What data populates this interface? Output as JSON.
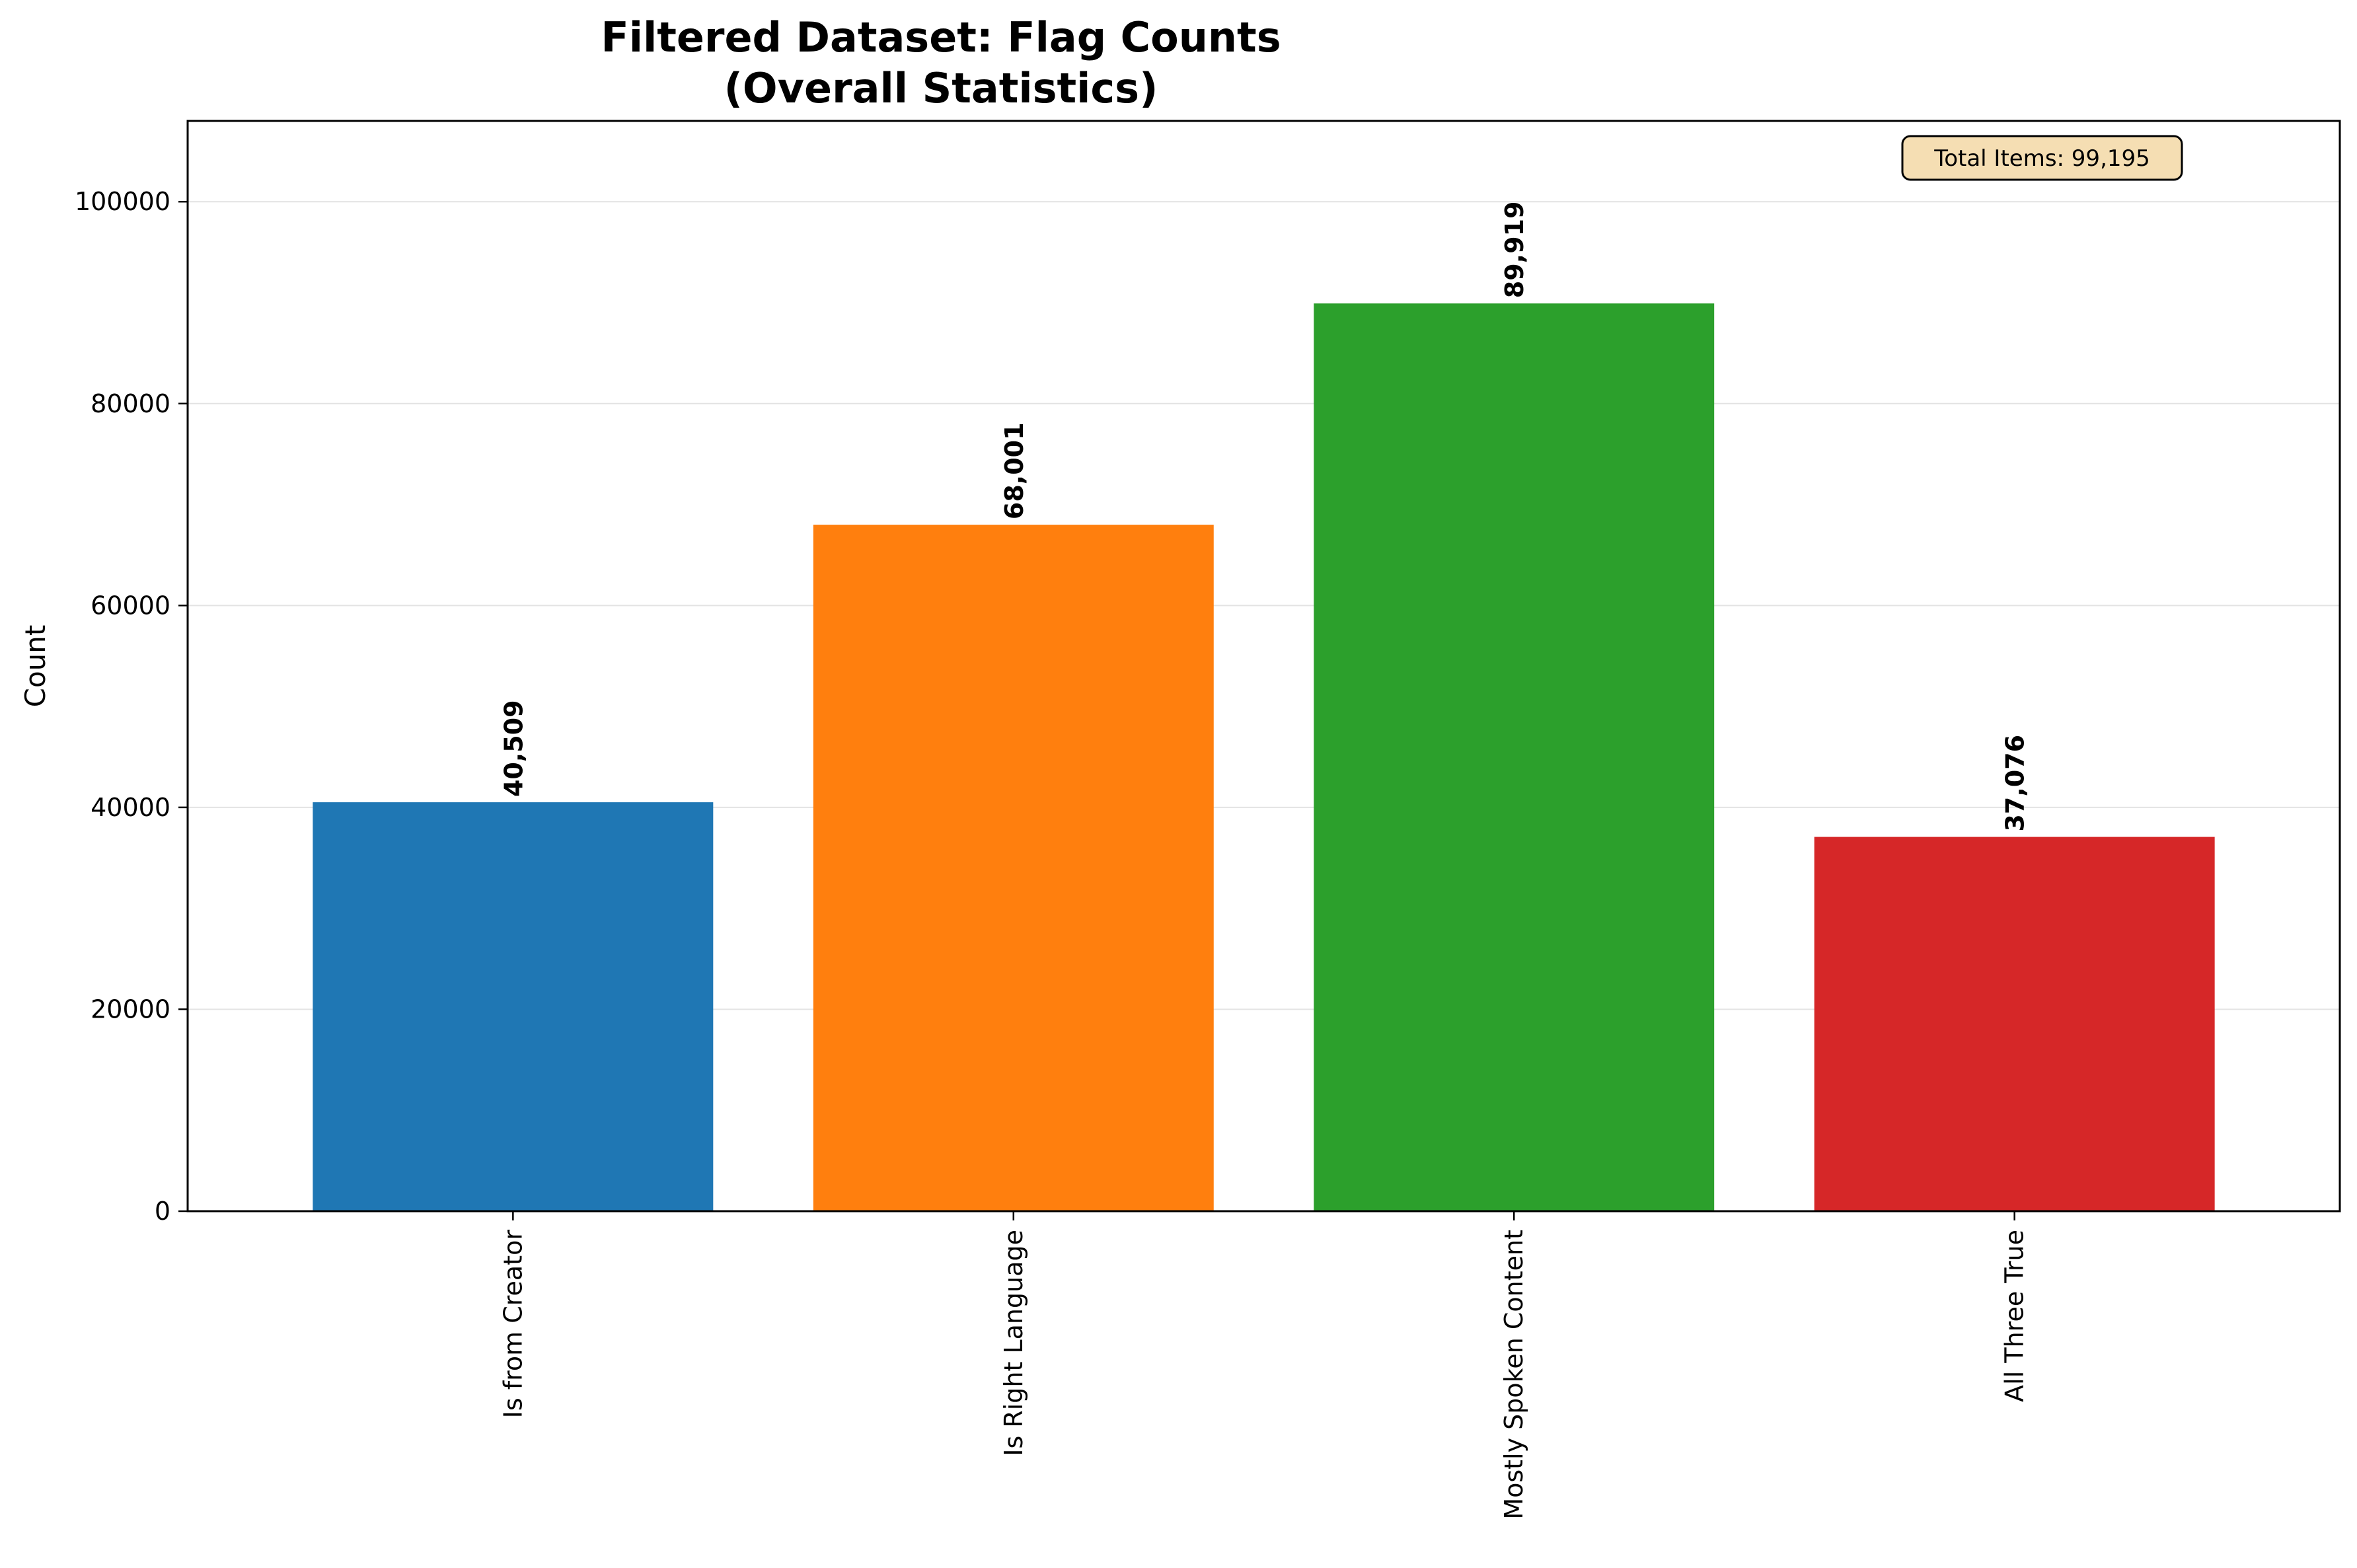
{
  "chart_data": {
    "type": "bar",
    "title": [
      "Filtered Dataset: Flag Counts",
      "(Overall Statistics)"
    ],
    "xlabel": "",
    "ylabel": "Count",
    "categories": [
      "Is from Creator",
      "Is Right Language",
      "Mostly Spoken Content",
      "All Three True"
    ],
    "values": [
      40509,
      68001,
      89919,
      37076
    ],
    "value_labels": [
      "40,509",
      "68,001",
      "89,919",
      "37,076"
    ],
    "colors": [
      "#1f77b4",
      "#ff7f0e",
      "#2ca02c",
      "#d62728"
    ],
    "ylim": [
      0,
      108000
    ],
    "yticks": [
      0,
      20000,
      40000,
      60000,
      80000,
      100000
    ],
    "grid": "y",
    "legend": "none",
    "annotation": "Total Items: 99,195",
    "annotation_colors": {
      "fill": "#f5deb3",
      "edge": "#000000"
    }
  }
}
